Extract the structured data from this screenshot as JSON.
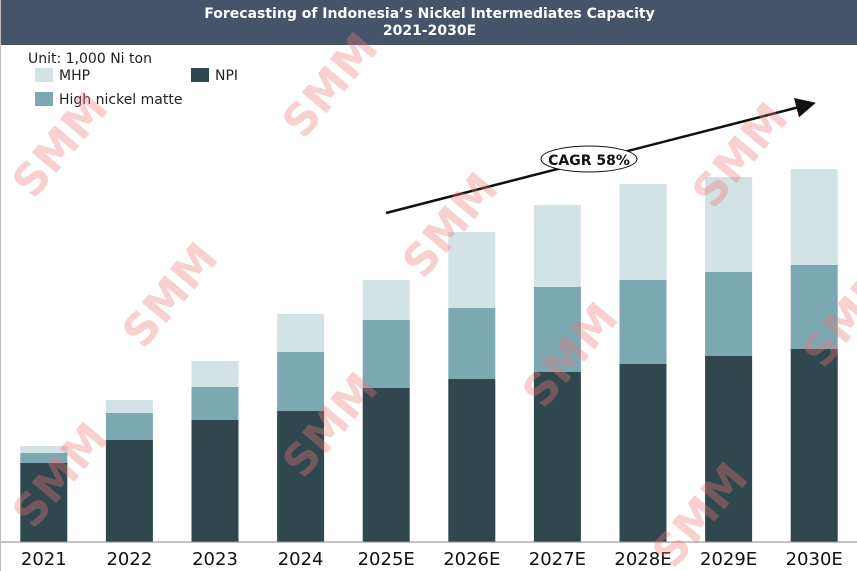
{
  "chart_data": {
    "type": "bar",
    "stacked": true,
    "title": "Forecasting of Indonesia’s Nickel Intermediates Capacity",
    "subtitle": "2021-2030E",
    "unit_label": "Unit: 1,000 Ni ton",
    "xlabel": "",
    "ylabel": "",
    "ylim": [
      0,
      5000
    ],
    "grid": false,
    "legend_position": "top-left",
    "categories": [
      "2021",
      "2022",
      "2023",
      "2024",
      "2025E",
      "2026E",
      "2027E",
      "2028E",
      "2029E",
      "2030E"
    ],
    "series": [
      {
        "name": "NPI",
        "color": "#2f474d",
        "values": [
          790,
          1020,
          1220,
          1310,
          1540,
          1630,
          1700,
          1780,
          1860,
          1930
        ]
      },
      {
        "name": "High nickel matte",
        "color": "#7ba8b1",
        "values": [
          100,
          270,
          330,
          590,
          680,
          710,
          850,
          840,
          840,
          840
        ]
      },
      {
        "name": "MHP",
        "color": "#d3e2e5",
        "values": [
          70,
          130,
          260,
          380,
          400,
          760,
          820,
          960,
          950,
          960
        ]
      }
    ],
    "annotation": {
      "text": "CAGR 58%"
    }
  },
  "watermark": "SMM"
}
